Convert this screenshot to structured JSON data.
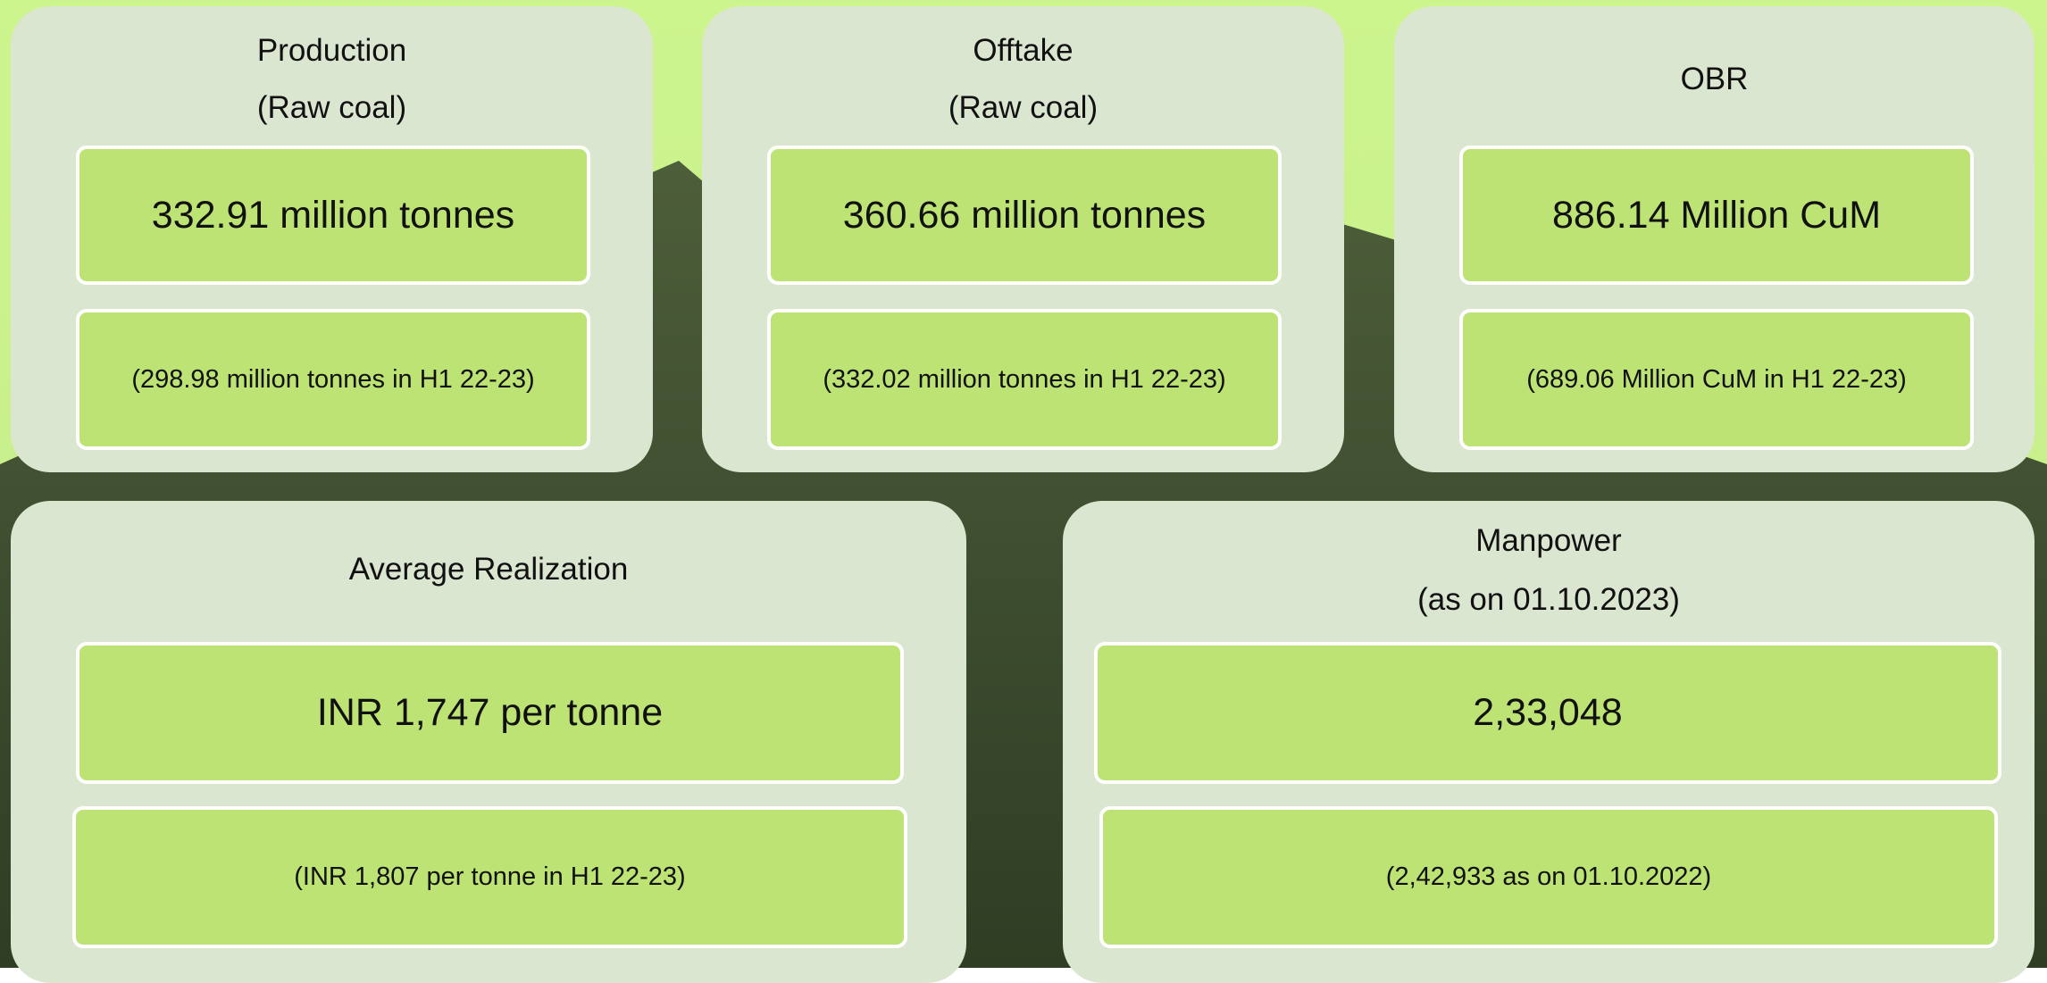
{
  "cards": [
    {
      "title": [
        "Production",
        "(Raw coal)"
      ],
      "value": "332.91 million tonnes",
      "comparison": "(298.98 million tonnes in H1 22-23)"
    },
    {
      "title": [
        "Offtake",
        "(Raw coal)"
      ],
      "value": "360.66 million tonnes",
      "comparison": "(332.02 million tonnes in H1 22-23)"
    },
    {
      "title": [
        "OBR"
      ],
      "value": "886.14 Million CuM",
      "comparison": "(689.06 Million CuM in H1 22-23)"
    },
    {
      "title": [
        "Average Realization"
      ],
      "value": "INR 1,747 per tonne",
      "comparison": "(INR 1,807 per tonne in H1 22-23)"
    },
    {
      "title": [
        "Manpower",
        "(as on 01.10.2023)"
      ],
      "value": "2,33,048",
      "comparison": "(2,42,933 as on 01.10.2022)"
    }
  ]
}
